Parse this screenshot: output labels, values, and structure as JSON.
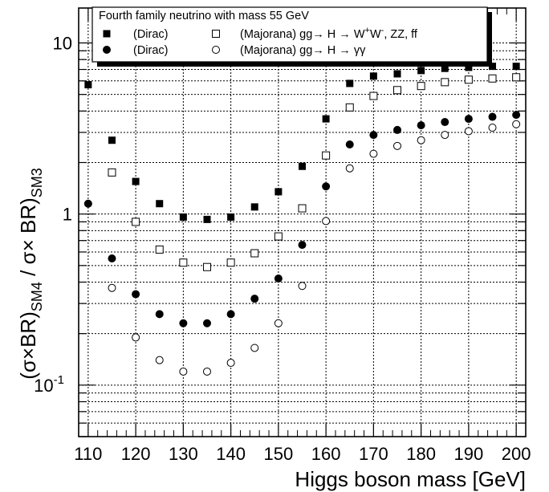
{
  "chart_data": {
    "type": "scatter",
    "title": "",
    "xlabel": "Higgs boson mass [GeV]",
    "ylabel_parts": {
      "open": "(σ×BR)",
      "sub_num": "SM4",
      "sep": " / σ× BR)",
      "sub_den": "SM3"
    },
    "yscale": "log",
    "xlim": [
      108,
      202
    ],
    "ylim": [
      0.05,
      16
    ],
    "xticks": [
      110,
      120,
      130,
      140,
      150,
      160,
      170,
      180,
      190,
      200
    ],
    "xtick_labels": [
      "110",
      "120",
      "130",
      "140",
      "150",
      "160",
      "170",
      "180",
      "190",
      "200"
    ],
    "yticks": [
      {
        "value": 10,
        "label": "10"
      },
      {
        "value": 1,
        "label": "1"
      },
      {
        "value": 0.1,
        "label": "10",
        "sup": "-1"
      }
    ],
    "grid": true,
    "legend": {
      "placement": "top",
      "header": "Fourth family neutrino with mass 55 GeV",
      "row1": {
        "left": "(Dirac)",
        "right": "(Majorana) gg→ H → W",
        "sup1": "+",
        "mid": "W",
        "sup2": "-",
        "tail": ", ZZ, ff"
      },
      "row2": {
        "left": "(Dirac)",
        "right": "(Majorana) gg→ H → γγ"
      }
    },
    "x": [
      110,
      115,
      120,
      125,
      130,
      135,
      140,
      145,
      150,
      155,
      160,
      165,
      170,
      175,
      180,
      185,
      190,
      195,
      200
    ],
    "series": [
      {
        "marker": "filled-square",
        "values": [
          5.7,
          2.7,
          1.55,
          1.15,
          0.96,
          0.93,
          0.96,
          1.1,
          1.35,
          1.9,
          3.6,
          5.8,
          6.4,
          6.6,
          6.9,
          7.1,
          7.2,
          7.3,
          7.3
        ]
      },
      {
        "marker": "open-square",
        "values": [
          null,
          1.75,
          0.9,
          0.62,
          0.52,
          0.49,
          0.52,
          0.59,
          0.74,
          1.08,
          2.2,
          4.2,
          4.9,
          5.3,
          5.6,
          5.9,
          6.1,
          6.2,
          6.3
        ]
      },
      {
        "marker": "filled-circle",
        "values": [
          1.15,
          0.55,
          0.34,
          0.26,
          0.23,
          0.23,
          0.26,
          0.32,
          0.42,
          0.66,
          1.45,
          2.55,
          2.9,
          3.1,
          3.3,
          3.45,
          3.6,
          3.7,
          3.8
        ]
      },
      {
        "marker": "open-circle",
        "values": [
          null,
          0.37,
          0.19,
          0.14,
          0.12,
          0.12,
          0.135,
          0.165,
          0.23,
          0.38,
          0.91,
          1.85,
          2.25,
          2.5,
          2.7,
          2.9,
          3.05,
          3.2,
          3.35
        ]
      }
    ]
  }
}
